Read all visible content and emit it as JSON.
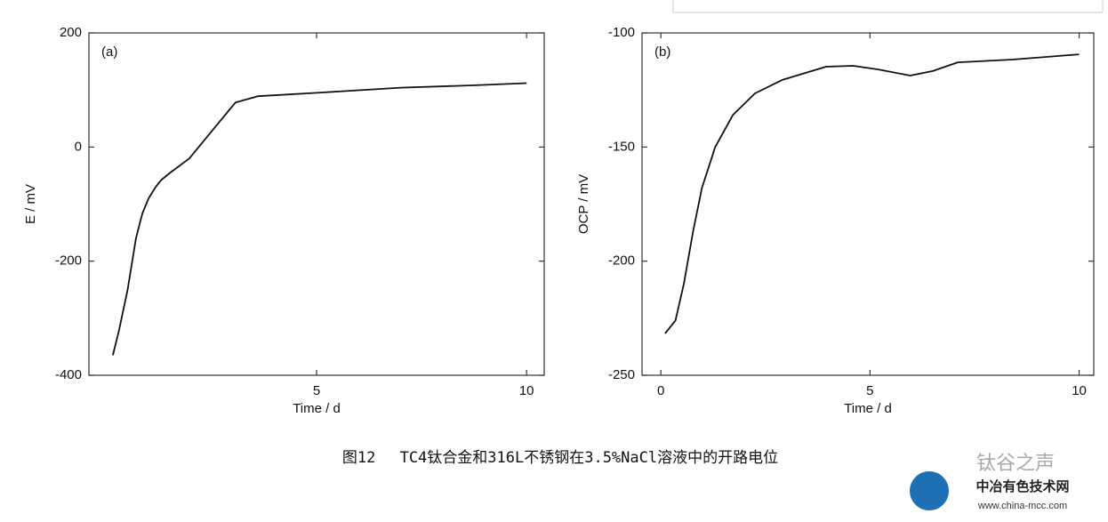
{
  "chart_data": [
    {
      "type": "line",
      "panel_label": "(a)",
      "x_label": "Time / d",
      "y_label": "E / mV",
      "xlim": [
        -0.42,
        10.42
      ],
      "ylim": [
        -400,
        200
      ],
      "xticks": [
        5,
        10
      ],
      "yticks": [
        -400,
        -200,
        0,
        200
      ],
      "series": [
        {
          "color": "#111111",
          "x": [
            0.15,
            0.3,
            0.5,
            0.7,
            0.85,
            1.0,
            1.17,
            1.3,
            1.48,
            1.97,
            2.54,
            3.07,
            3.6,
            5,
            7,
            8.7,
            10
          ],
          "values": [
            -365,
            -320,
            -250,
            -160,
            -117,
            -90,
            -70,
            -58,
            -47,
            -20,
            31,
            78,
            89,
            95,
            104,
            108,
            112
          ]
        }
      ]
    },
    {
      "type": "line",
      "panel_label": "(b)",
      "x_label": "Time / d",
      "y_label": "OCP / mV",
      "xlim": [
        -0.45,
        10.35
      ],
      "ylim": [
        -250,
        -100
      ],
      "xticks": [
        0,
        5,
        10
      ],
      "yticks": [
        -250,
        -200,
        -150,
        -100
      ],
      "series": [
        {
          "color": "#111111",
          "x": [
            0.1,
            0.35,
            0.55,
            0.77,
            0.98,
            1.3,
            1.72,
            2.25,
            2.9,
            3.95,
            4.6,
            5.2,
            5.96,
            6.5,
            7.1,
            8.4,
            10
          ],
          "values": [
            -231.7,
            -226,
            -210,
            -187,
            -168,
            -150,
            -136,
            -126.5,
            -120.6,
            -114.8,
            -114.4,
            -116,
            -118.7,
            -116.7,
            -112.9,
            -111.7,
            -109.4
          ]
        }
      ]
    }
  ],
  "caption": "图12　 TC4钛合金和316L不锈钢在3.5%NaCl溶液中的开路电位",
  "watermark": {
    "account": "钛谷之声",
    "site": "中冶有色技术网",
    "url": "www.china-mcc.com"
  }
}
